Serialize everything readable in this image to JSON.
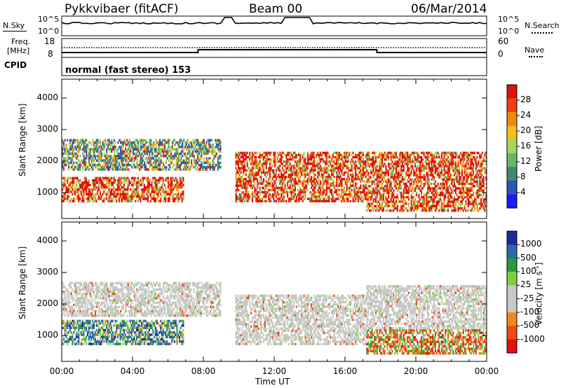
{
  "header": {
    "radar": "Pykkvibaer (fitACF)",
    "beam": "Beam 00",
    "date": "06/Mar/2014"
  },
  "panels": {
    "nsky_label": "N.Sky",
    "nsearch_label": "N.Search",
    "noise_ticks_left": [
      "10^5",
      "10^0"
    ],
    "noise_ticks_right": [
      "10^5",
      "10^0"
    ],
    "freq_label": "Freq.",
    "freq_unit": "[MHz]",
    "freq_ticks": [
      "18",
      "8"
    ],
    "nave_label": "Nave",
    "nave_ticks": [
      "60",
      "0"
    ],
    "cpid_label": "CPID",
    "cpid_text": "normal (fast stereo) 153"
  },
  "colors": {
    "axis": "#000000",
    "gray_ground": "#c8c8c4",
    "power_scale": [
      "#1a1aff",
      "#2e55b8",
      "#3c8a70",
      "#66b86a",
      "#a6d65a",
      "#f0c020",
      "#f08a10",
      "#f04010",
      "#e01010"
    ],
    "velocity_scale": [
      "#e01010",
      "#f04a10",
      "#f08a20",
      "#c8c8c4",
      "#c8c8c4",
      "#7cd040",
      "#2a9a40",
      "#2e6aa8",
      "#1a2aa0"
    ]
  },
  "chart_data": [
    {
      "type": "heatmap",
      "title": "",
      "xlabel": "Time UT",
      "ylabel": "Slant Range [km]",
      "xticks": [
        "00:00",
        "04:00",
        "08:00",
        "12:00",
        "16:00",
        "20:00",
        "00:00"
      ],
      "yticks": [
        "1000",
        "2000",
        "3000",
        "4000"
      ],
      "xlim_hours": [
        0,
        24
      ],
      "ylim_km": [
        180,
        4600
      ],
      "colorbar": {
        "label": "Power [dB]",
        "ticks": [
          "28",
          "24",
          "20",
          "16",
          "12",
          "8",
          "4"
        ],
        "range": [
          0,
          30
        ]
      },
      "echo_bands": [
        {
          "t0": 0.0,
          "t1": 6.9,
          "r0": 700,
          "r1": 1500,
          "level": "strong"
        },
        {
          "t0": 0.0,
          "t1": 9.0,
          "r0": 1700,
          "r1": 2700,
          "level": "medium"
        },
        {
          "t0": 9.8,
          "t1": 17.2,
          "r0": 700,
          "r1": 2300,
          "level": "strong"
        },
        {
          "t0": 17.2,
          "t1": 24.0,
          "r0": 400,
          "r1": 2300,
          "level": "strong"
        }
      ]
    },
    {
      "type": "heatmap",
      "title": "",
      "xlabel": "Time UT",
      "ylabel": "Slant Range [km]",
      "xticks": [
        "00:00",
        "04:00",
        "08:00",
        "12:00",
        "16:00",
        "20:00",
        "00:00"
      ],
      "yticks": [
        "1000",
        "2000",
        "3000",
        "4000"
      ],
      "xlim_hours": [
        0,
        24
      ],
      "ylim_km": [
        180,
        4600
      ],
      "colorbar": {
        "label": "Velocity [m s",
        "label_superscript": "-1",
        "label_close": "]",
        "ticks": [
          "1000",
          "500",
          "100",
          "25",
          "-25",
          "-100",
          "-500",
          "-1000"
        ],
        "range": [
          -1000,
          1000
        ]
      },
      "echo_bands": [
        {
          "t0": 0.0,
          "t1": 9.0,
          "r0": 1600,
          "r1": 2700,
          "level": "ground"
        },
        {
          "t0": 0.0,
          "t1": 6.9,
          "r0": 700,
          "r1": 1500,
          "level": "positive"
        },
        {
          "t0": 9.8,
          "t1": 17.2,
          "r0": 700,
          "r1": 2300,
          "level": "ground"
        },
        {
          "t0": 17.2,
          "t1": 24.0,
          "r0": 1200,
          "r1": 2600,
          "level": "ground"
        },
        {
          "t0": 17.2,
          "t1": 24.0,
          "r0": 400,
          "r1": 1200,
          "level": "mixed"
        }
      ]
    }
  ]
}
